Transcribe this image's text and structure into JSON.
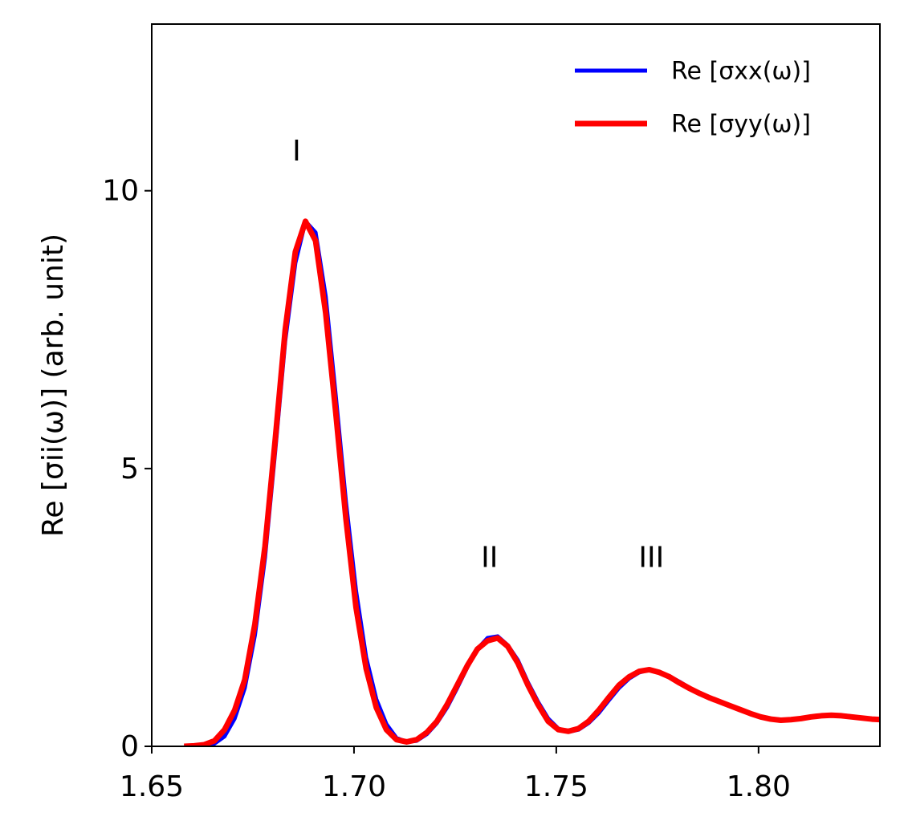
{
  "chart_data": {
    "type": "line",
    "ylabel": "Re [σii(ω)] (arb. unit)",
    "x": [
      1.658,
      1.6605,
      1.663,
      1.6655,
      1.668,
      1.6705,
      1.673,
      1.6755,
      1.678,
      1.6805,
      1.683,
      1.6855,
      1.688,
      1.6905,
      1.693,
      1.6955,
      1.698,
      1.7005,
      1.703,
      1.7055,
      1.708,
      1.7105,
      1.713,
      1.7155,
      1.718,
      1.7205,
      1.723,
      1.7255,
      1.728,
      1.7305,
      1.733,
      1.7355,
      1.738,
      1.7405,
      1.743,
      1.7455,
      1.748,
      1.7505,
      1.753,
      1.7555,
      1.758,
      1.7605,
      1.763,
      1.7655,
      1.768,
      1.7705,
      1.773,
      1.7755,
      1.778,
      1.7805,
      1.783,
      1.7855,
      1.788,
      1.7905,
      1.793,
      1.7955,
      1.798,
      1.8005,
      1.803,
      1.8055,
      1.808,
      1.8105,
      1.813,
      1.8155,
      1.818,
      1.8205,
      1.823,
      1.8255,
      1.828,
      1.8305
    ],
    "series": [
      {
        "name": "Re [σxx(ω)]",
        "color": "#0000ff",
        "width": 5,
        "values": [
          0,
          0,
          0.01,
          0.05,
          0.18,
          0.5,
          1.05,
          2.0,
          3.4,
          5.3,
          7.3,
          8.7,
          9.45,
          9.25,
          8.1,
          6.3,
          4.4,
          2.8,
          1.6,
          0.85,
          0.4,
          0.15,
          0.08,
          0.1,
          0.22,
          0.42,
          0.7,
          1.05,
          1.42,
          1.75,
          1.95,
          1.98,
          1.82,
          1.55,
          1.15,
          0.8,
          0.5,
          0.32,
          0.26,
          0.3,
          0.42,
          0.6,
          0.83,
          1.05,
          1.22,
          1.33,
          1.38,
          1.34,
          1.26,
          1.16,
          1.05,
          0.96,
          0.88,
          0.8,
          0.73,
          0.66,
          0.6,
          0.54,
          0.5,
          0.48,
          0.48,
          0.5,
          0.53,
          0.55,
          0.56,
          0.56,
          0.54,
          0.51,
          0.49,
          0.48
        ]
      },
      {
        "name": "Re [σyy(ω)]",
        "color": "#ff0000",
        "width": 7,
        "values": [
          0,
          0.01,
          0.03,
          0.1,
          0.3,
          0.65,
          1.2,
          2.2,
          3.6,
          5.5,
          7.5,
          8.9,
          9.45,
          9.1,
          7.8,
          6.0,
          4.1,
          2.5,
          1.4,
          0.7,
          0.3,
          0.12,
          0.08,
          0.12,
          0.25,
          0.45,
          0.75,
          1.1,
          1.45,
          1.75,
          1.9,
          1.95,
          1.8,
          1.5,
          1.1,
          0.75,
          0.45,
          0.3,
          0.27,
          0.32,
          0.45,
          0.65,
          0.88,
          1.1,
          1.25,
          1.35,
          1.38,
          1.33,
          1.25,
          1.14,
          1.04,
          0.95,
          0.87,
          0.8,
          0.73,
          0.66,
          0.59,
          0.53,
          0.49,
          0.47,
          0.48,
          0.5,
          0.53,
          0.55,
          0.56,
          0.55,
          0.53,
          0.51,
          0.49,
          0.48
        ]
      }
    ],
    "xlim": [
      1.65,
      1.83
    ],
    "xticks": [
      1.65,
      {
        "value": 1.7,
        "label": "1.70"
      },
      1.75,
      {
        "value": 1.8,
        "label": "1.80"
      }
    ],
    "ylim": [
      0,
      13
    ],
    "yticks": [
      0,
      5,
      10
    ],
    "legend": "upper right",
    "annotations": [
      {
        "text": "I",
        "x": 1.6858,
        "y": 10.69
      },
      {
        "text": "II",
        "x": 1.7335,
        "y": 3.37
      },
      {
        "text": "III",
        "x": 1.7735,
        "y": 3.37
      }
    ]
  }
}
